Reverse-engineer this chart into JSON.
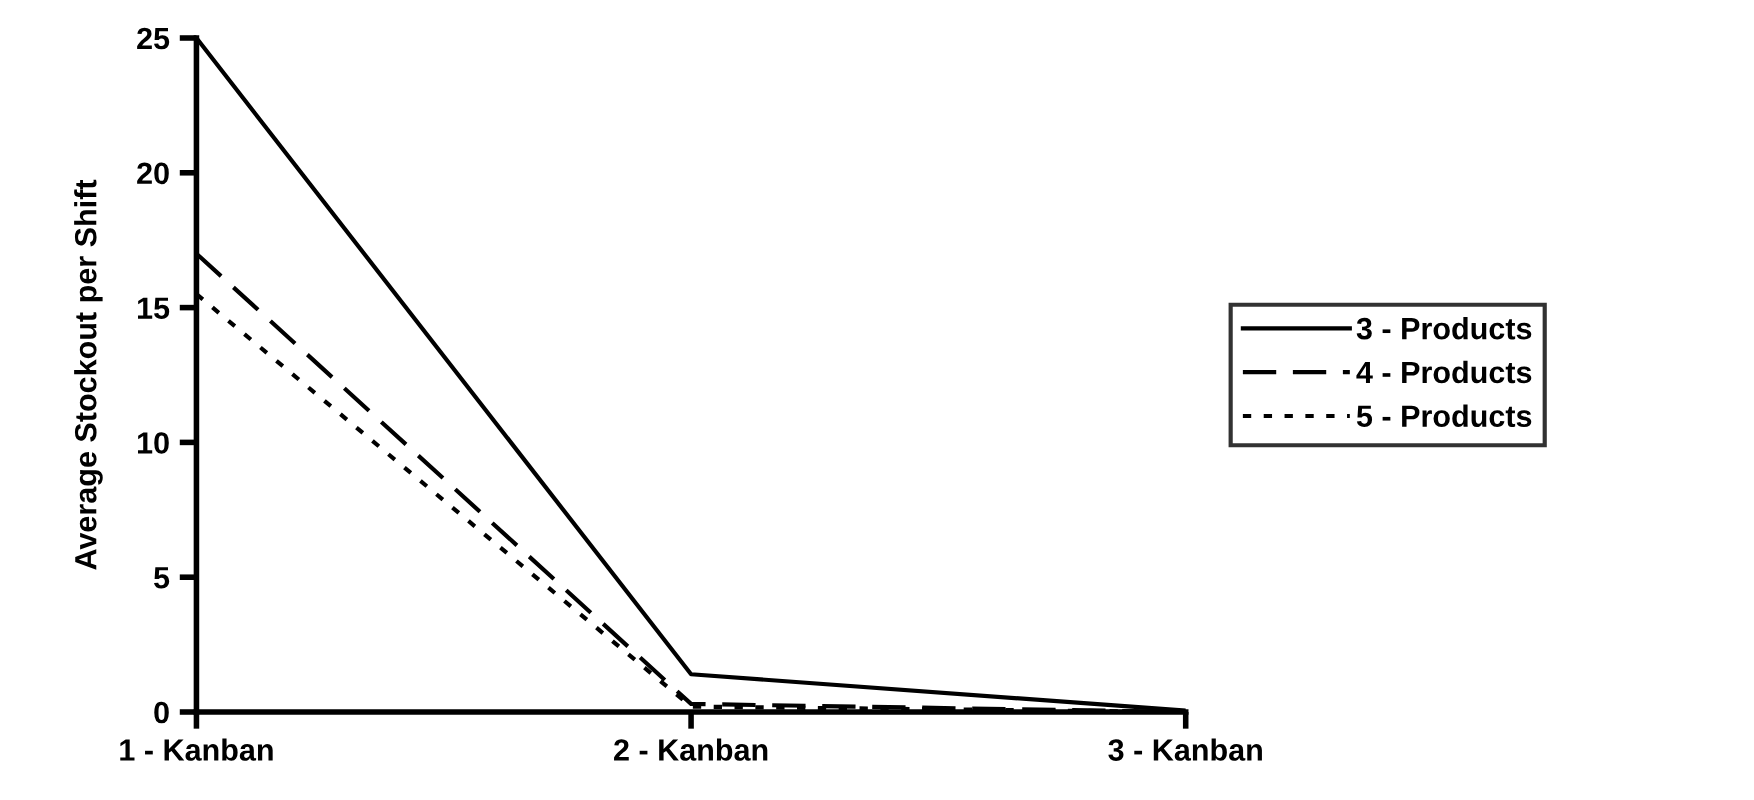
{
  "chart_data": {
    "type": "line",
    "ylabel": "Average Stockout per Shift",
    "categories": [
      "1 - Kanban",
      "2 - Kanban",
      "3 - Kanban"
    ],
    "series": [
      {
        "name": "3 - Products",
        "color": "#000000",
        "line_style": "solid",
        "values": [
          25,
          1.4,
          0.05
        ]
      },
      {
        "name": "4 - Products",
        "color": "#000000",
        "line_style": "dashed",
        "values": [
          17,
          0.3,
          0
        ]
      },
      {
        "name": "5 - Products",
        "color": "#000000",
        "line_style": "dotted",
        "values": [
          15.5,
          0.2,
          0
        ]
      }
    ],
    "ylim": [
      0,
      25
    ],
    "yticks": [
      0,
      5,
      10,
      15,
      20,
      25
    ],
    "grid": false,
    "legend": "right",
    "marker": "none"
  }
}
